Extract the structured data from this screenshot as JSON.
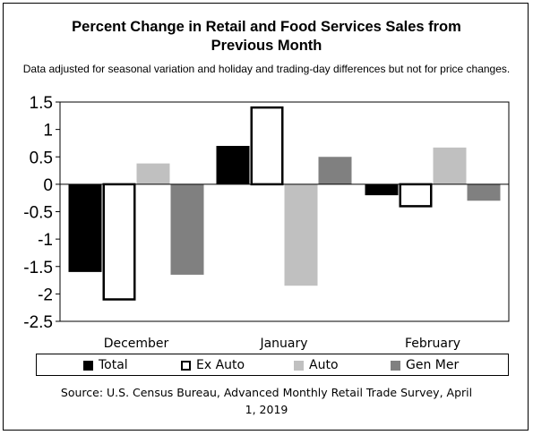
{
  "chart_data": {
    "type": "bar",
    "title": "Percent Change in Retail and Food Services Sales from Previous Month",
    "subtitle": "Data adjusted for seasonal variation and holiday and trading-day differences but not for price changes.",
    "categories": [
      "December",
      "January",
      "February"
    ],
    "series": [
      {
        "name": "Total",
        "values": [
          -1.6,
          0.7,
          -0.2
        ]
      },
      {
        "name": "Ex Auto",
        "values": [
          -2.1,
          1.4,
          -0.4
        ]
      },
      {
        "name": "Auto",
        "values": [
          0.38,
          -1.85,
          0.67
        ]
      },
      {
        "name": "Gen Mer",
        "values": [
          -1.65,
          0.5,
          -0.3
        ]
      }
    ],
    "yticks": [
      "1.5",
      "1",
      "0.5",
      "0",
      "-0.5",
      "-1",
      "-1.5",
      "-2",
      "-2.5"
    ],
    "ylim": [
      -2.5,
      1.5
    ],
    "grid": false,
    "legend_position": "bottom",
    "source": "Source: U.S. Census Bureau, Advanced Monthly Retail Trade Survey, April 1, 2019",
    "colors": {
      "Total": "#000000",
      "Ex Auto": "#ffffff",
      "Auto": "#c0c0c0",
      "Gen Mer": "#808080"
    }
  }
}
